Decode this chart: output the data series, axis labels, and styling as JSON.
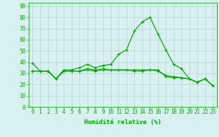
{
  "xlabel": "Humidité relative (%)",
  "x_ticks": [
    0,
    1,
    2,
    3,
    4,
    5,
    6,
    7,
    8,
    9,
    10,
    11,
    12,
    13,
    14,
    15,
    16,
    17,
    18,
    19,
    20,
    21,
    22,
    23
  ],
  "y_ticks": [
    0,
    10,
    20,
    30,
    40,
    50,
    60,
    70,
    80,
    90
  ],
  "ylim": [
    0,
    93
  ],
  "xlim": [
    -0.5,
    23.5
  ],
  "line1": [
    39,
    32,
    32,
    25,
    33,
    33,
    35,
    38,
    35,
    37,
    38,
    47,
    51,
    68,
    76,
    80,
    65,
    51,
    38,
    34,
    25,
    22,
    25,
    19
  ],
  "line2": [
    32,
    32,
    32,
    25,
    32,
    32,
    32,
    33,
    32,
    33,
    33,
    33,
    33,
    33,
    33,
    33,
    33,
    27,
    26,
    26,
    25,
    22,
    25,
    19
  ],
  "line3": [
    32,
    32,
    32,
    25,
    32,
    32,
    32,
    34,
    33,
    34,
    33,
    33,
    33,
    32,
    32,
    33,
    32,
    28,
    27,
    26,
    25,
    22,
    25,
    19
  ],
  "line_color": "#00aa00",
  "marker": "+",
  "marker_size": 3,
  "bg_color": "#d8f0f0",
  "grid_color": "#b8d0d0",
  "axis_color": "#00aa00",
  "line_width": 0.9,
  "tick_fontsize": 5.5,
  "xlabel_fontsize": 6.5
}
